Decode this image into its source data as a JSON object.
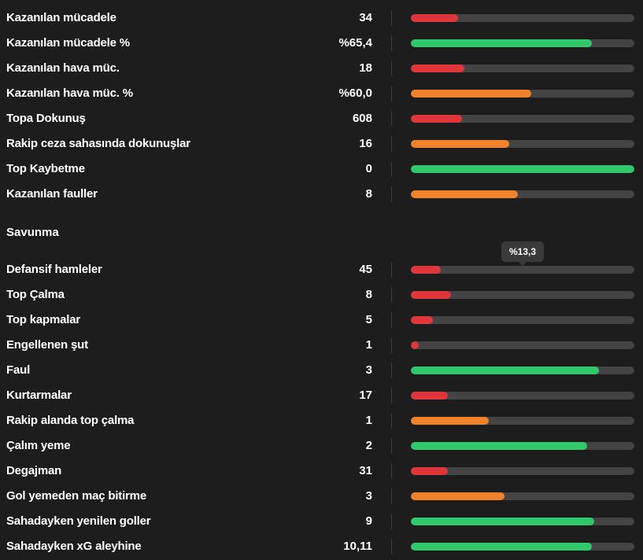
{
  "colors": {
    "red": "#e0363a",
    "green": "#31c76a",
    "orange": "#f0822a",
    "track": "#444444",
    "background": "#1d1d1d"
  },
  "top_stats": [
    {
      "label": "Kazanılan mücadele",
      "value": "34",
      "fraction": 0.21,
      "color": "red"
    },
    {
      "label": "Kazanılan mücadele %",
      "value": "%65,4",
      "fraction": 0.81,
      "color": "green"
    },
    {
      "label": "Kazanılan hava müc.",
      "value": "18",
      "fraction": 0.24,
      "color": "red"
    },
    {
      "label": "Kazanılan hava müc. %",
      "value": "%60,0",
      "fraction": 0.54,
      "color": "orange"
    },
    {
      "label": "Topa Dokunuş",
      "value": "608",
      "fraction": 0.23,
      "color": "red"
    },
    {
      "label": "Rakip ceza sahasında dokunuşlar",
      "value": "16",
      "fraction": 0.44,
      "color": "orange"
    },
    {
      "label": "Top Kaybetme",
      "value": "0",
      "fraction": 1.0,
      "color": "green"
    },
    {
      "label": "Kazanılan fauller",
      "value": "8",
      "fraction": 0.48,
      "color": "orange"
    }
  ],
  "defense": {
    "title": "Savunma",
    "tooltip": "%13,3",
    "stats": [
      {
        "label": "Defansif hamleler",
        "value": "45",
        "fraction": 0.133,
        "color": "red"
      },
      {
        "label": "Top Çalma",
        "value": "8",
        "fraction": 0.18,
        "color": "red"
      },
      {
        "label": "Top kapmalar",
        "value": "5",
        "fraction": 0.1,
        "color": "red"
      },
      {
        "label": "Engellenen şut",
        "value": "1",
        "fraction": 0.035,
        "color": "red"
      },
      {
        "label": "Faul",
        "value": "3",
        "fraction": 0.84,
        "color": "green"
      },
      {
        "label": "Kurtarmalar",
        "value": "17",
        "fraction": 0.165,
        "color": "red"
      },
      {
        "label": "Rakip alanda top çalma",
        "value": "1",
        "fraction": 0.35,
        "color": "orange"
      },
      {
        "label": "Çalım yeme",
        "value": "2",
        "fraction": 0.79,
        "color": "green"
      },
      {
        "label": "Degajman",
        "value": "31",
        "fraction": 0.165,
        "color": "red"
      },
      {
        "label": "Gol yemeden maç bitirme",
        "value": "3",
        "fraction": 0.42,
        "color": "orange"
      },
      {
        "label": "Sahadayken yenilen goller",
        "value": "9",
        "fraction": 0.82,
        "color": "green"
      },
      {
        "label": "Sahadayken xG aleyhine",
        "value": "10,11",
        "fraction": 0.81,
        "color": "green"
      }
    ]
  }
}
